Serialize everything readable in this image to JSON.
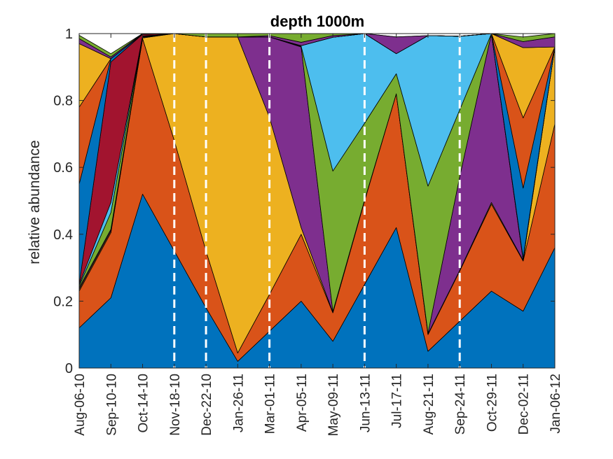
{
  "chart_data": {
    "type": "area",
    "title": "depth 1000m",
    "xlabel": "",
    "ylabel": "relative abundance",
    "ylim": [
      0,
      1
    ],
    "yticks": [
      0,
      0.2,
      0.4,
      0.6,
      0.8,
      1
    ],
    "ytick_labels": [
      "0",
      "0.2",
      "0.4",
      "0.6",
      "0.8",
      "1"
    ],
    "grid": false,
    "stacked": true,
    "categories": [
      "Aug-06-10",
      "Sep-10-10",
      "Oct-14-10",
      "Nov-18-10",
      "Dec-22-10",
      "Jan-26-11",
      "Mar-01-11",
      "Apr-05-11",
      "May-09-11",
      "Jun-13-11",
      "Jul-17-11",
      "Aug-21-11",
      "Sep-24-11",
      "Oct-29-11",
      "Dec-02-11",
      "Jan-06-12"
    ],
    "vertical_dashed_lines_at": [
      "Nov-18-10",
      "Dec-22-10",
      "Mar-01-11",
      "Jun-13-11",
      "Sep-24-11"
    ],
    "series": [
      {
        "color": "#0072BD",
        "values": [
          0.12,
          0.21,
          0.52,
          0.35,
          0.18,
          0.02,
          0.11,
          0.2,
          0.08,
          0.25,
          0.42,
          0.05,
          0.14,
          0.23,
          0.17,
          0.36
        ]
      },
      {
        "color": "#D95319",
        "values": [
          0.11,
          0.195,
          0.465,
          0.33,
          0.17,
          0.025,
          0.11,
          0.2,
          0.085,
          0.25,
          0.4,
          0.05,
          0.15,
          0.26,
          0.15,
          0.37
        ]
      },
      {
        "color": "#EDB120",
        "values": [
          0.005,
          0.005,
          0.002,
          0.32,
          0.64,
          0.945,
          0.53,
          0.02,
          0.002,
          0.002,
          0.0,
          0.002,
          0.002,
          0.005,
          0.002,
          0.23
        ]
      },
      {
        "color": "#7E2F8E",
        "values": [
          0.005,
          0.005,
          0.002,
          0.0,
          0.0,
          0.0,
          0.24,
          0.54,
          0.002,
          0.0,
          0.0,
          0.002,
          0.28,
          0.51,
          0.002,
          0.0
        ]
      },
      {
        "color": "#77AC30",
        "values": [
          0.005,
          0.05,
          0.002,
          0.0,
          0.0,
          0.0,
          0.0,
          0.002,
          0.42,
          0.23,
          0.06,
          0.44,
          0.2,
          0.0,
          0.002,
          0.0
        ]
      },
      {
        "color": "#4DBEEE",
        "values": [
          0.005,
          0.03,
          0.002,
          0.0,
          0.0,
          0.0,
          0.0,
          0.002,
          0.4,
          0.27,
          0.06,
          0.45,
          0.22,
          0.0,
          0.002,
          0.0
        ]
      },
      {
        "color": "#A2142F",
        "values": [
          0.0,
          0.42,
          0.005,
          0.0,
          0.0,
          0.0,
          0.0,
          0.0,
          0.0,
          0.0,
          0.0,
          0.0,
          0.0,
          0.0,
          0.0,
          0.0
        ]
      },
      {
        "color": "#0072BD",
        "values": [
          0.3,
          0.01,
          0.0,
          0.0,
          0.0,
          0.0,
          0.0,
          0.0,
          0.0,
          0.0,
          0.0,
          0.0,
          0.0,
          0.0,
          0.21,
          0.0
        ]
      },
      {
        "color": "#D95319",
        "values": [
          0.23,
          0.0,
          0.0,
          0.0,
          0.0,
          0.0,
          0.0,
          0.0,
          0.0,
          0.0,
          0.0,
          0.0,
          0.0,
          0.0,
          0.21,
          0.0
        ]
      },
      {
        "color": "#EDB120",
        "values": [
          0.19,
          0.0,
          0.0,
          0.0,
          0.0,
          0.0,
          0.0,
          0.0,
          0.0,
          0.0,
          0.0,
          0.0,
          0.0,
          0.0,
          0.21,
          0.0
        ]
      },
      {
        "color": "#7E2F8E",
        "values": [
          0.015,
          0.005,
          0.005,
          0.0,
          0.0,
          0.0,
          0.004,
          0.01,
          0.005,
          0.0,
          0.05,
          0.0,
          0.0,
          0.0,
          0.018,
          0.03
        ]
      },
      {
        "color": "#77AC30",
        "values": [
          0.01,
          0.01,
          0.015,
          0.01,
          0.01,
          0.01,
          0.006,
          0.026,
          0.006,
          0.0,
          0.0,
          0.0,
          0.0,
          0.0,
          0.014,
          0.01
        ]
      }
    ]
  }
}
